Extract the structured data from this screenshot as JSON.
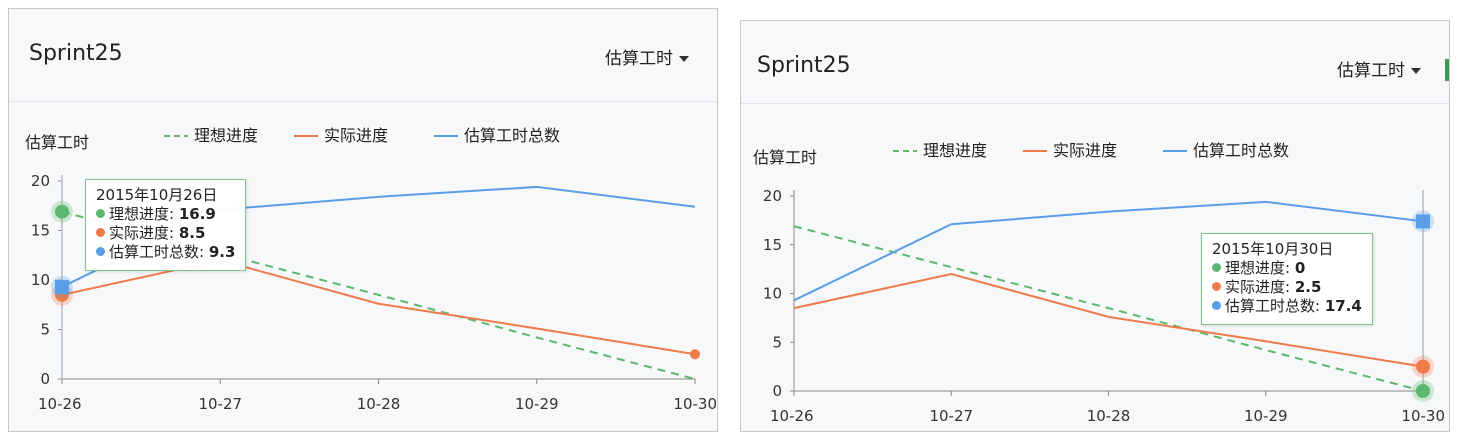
{
  "colors": {
    "ideal": "#5cb86e",
    "actual": "#ef7a4a",
    "total": "#5a9ee8",
    "grid": "#d0d3d8",
    "crosshair": "#c9ccd1"
  },
  "panels": [
    {
      "title": "Sprint25",
      "dropdown_label": "估算工时",
      "chart_data": {
        "type": "line",
        "ylabel": "估算工时",
        "categories": [
          "10-26",
          "10-27",
          "10-28",
          "10-29",
          "10-30"
        ],
        "ylim": [
          0,
          20
        ],
        "yticks": [
          0,
          5,
          10,
          15,
          20
        ],
        "series": [
          {
            "name": "理想进度",
            "key": "ideal",
            "style": "dashed",
            "values": [
              16.9,
              12.7,
              8.5,
              4.2,
              0
            ]
          },
          {
            "name": "实际进度",
            "key": "actual",
            "style": "solid",
            "values": [
              8.5,
              12.0,
              7.6,
              5.1,
              2.5
            ]
          },
          {
            "name": "估算工时总数",
            "key": "total",
            "style": "solid",
            "values": [
              9.3,
              17.1,
              18.4,
              19.4,
              17.4
            ]
          }
        ],
        "legend_position": "top"
      },
      "tooltip": {
        "index": 0,
        "date": "2015年10月26日",
        "rows": [
          {
            "key": "ideal",
            "label": "理想进度: ",
            "value": "16.9"
          },
          {
            "key": "actual",
            "label": "实际进度: ",
            "value": "8.5"
          },
          {
            "key": "total",
            "label": "估算工时总数: ",
            "value": "9.3"
          }
        ]
      }
    },
    {
      "title": "Sprint25",
      "dropdown_label": "估算工时",
      "chart_data": {
        "type": "line",
        "ylabel": "估算工时",
        "categories": [
          "10-26",
          "10-27",
          "10-28",
          "10-29",
          "10-30"
        ],
        "ylim": [
          0,
          20
        ],
        "yticks": [
          0,
          5,
          10,
          15,
          20
        ],
        "series": [
          {
            "name": "理想进度",
            "key": "ideal",
            "style": "dashed",
            "values": [
              16.9,
              12.7,
              8.5,
              4.2,
              0
            ]
          },
          {
            "name": "实际进度",
            "key": "actual",
            "style": "solid",
            "values": [
              8.5,
              12.0,
              7.6,
              5.1,
              2.5
            ]
          },
          {
            "name": "估算工时总数",
            "key": "total",
            "style": "solid",
            "values": [
              9.3,
              17.1,
              18.4,
              19.4,
              17.4
            ]
          }
        ],
        "legend_position": "top"
      },
      "tooltip": {
        "index": 4,
        "date": "2015年10月30日",
        "rows": [
          {
            "key": "ideal",
            "label": "理想进度: ",
            "value": "0"
          },
          {
            "key": "actual",
            "label": "实际进度: ",
            "value": "2.5"
          },
          {
            "key": "total",
            "label": "估算工时总数: ",
            "value": "17.4"
          }
        ]
      }
    }
  ]
}
